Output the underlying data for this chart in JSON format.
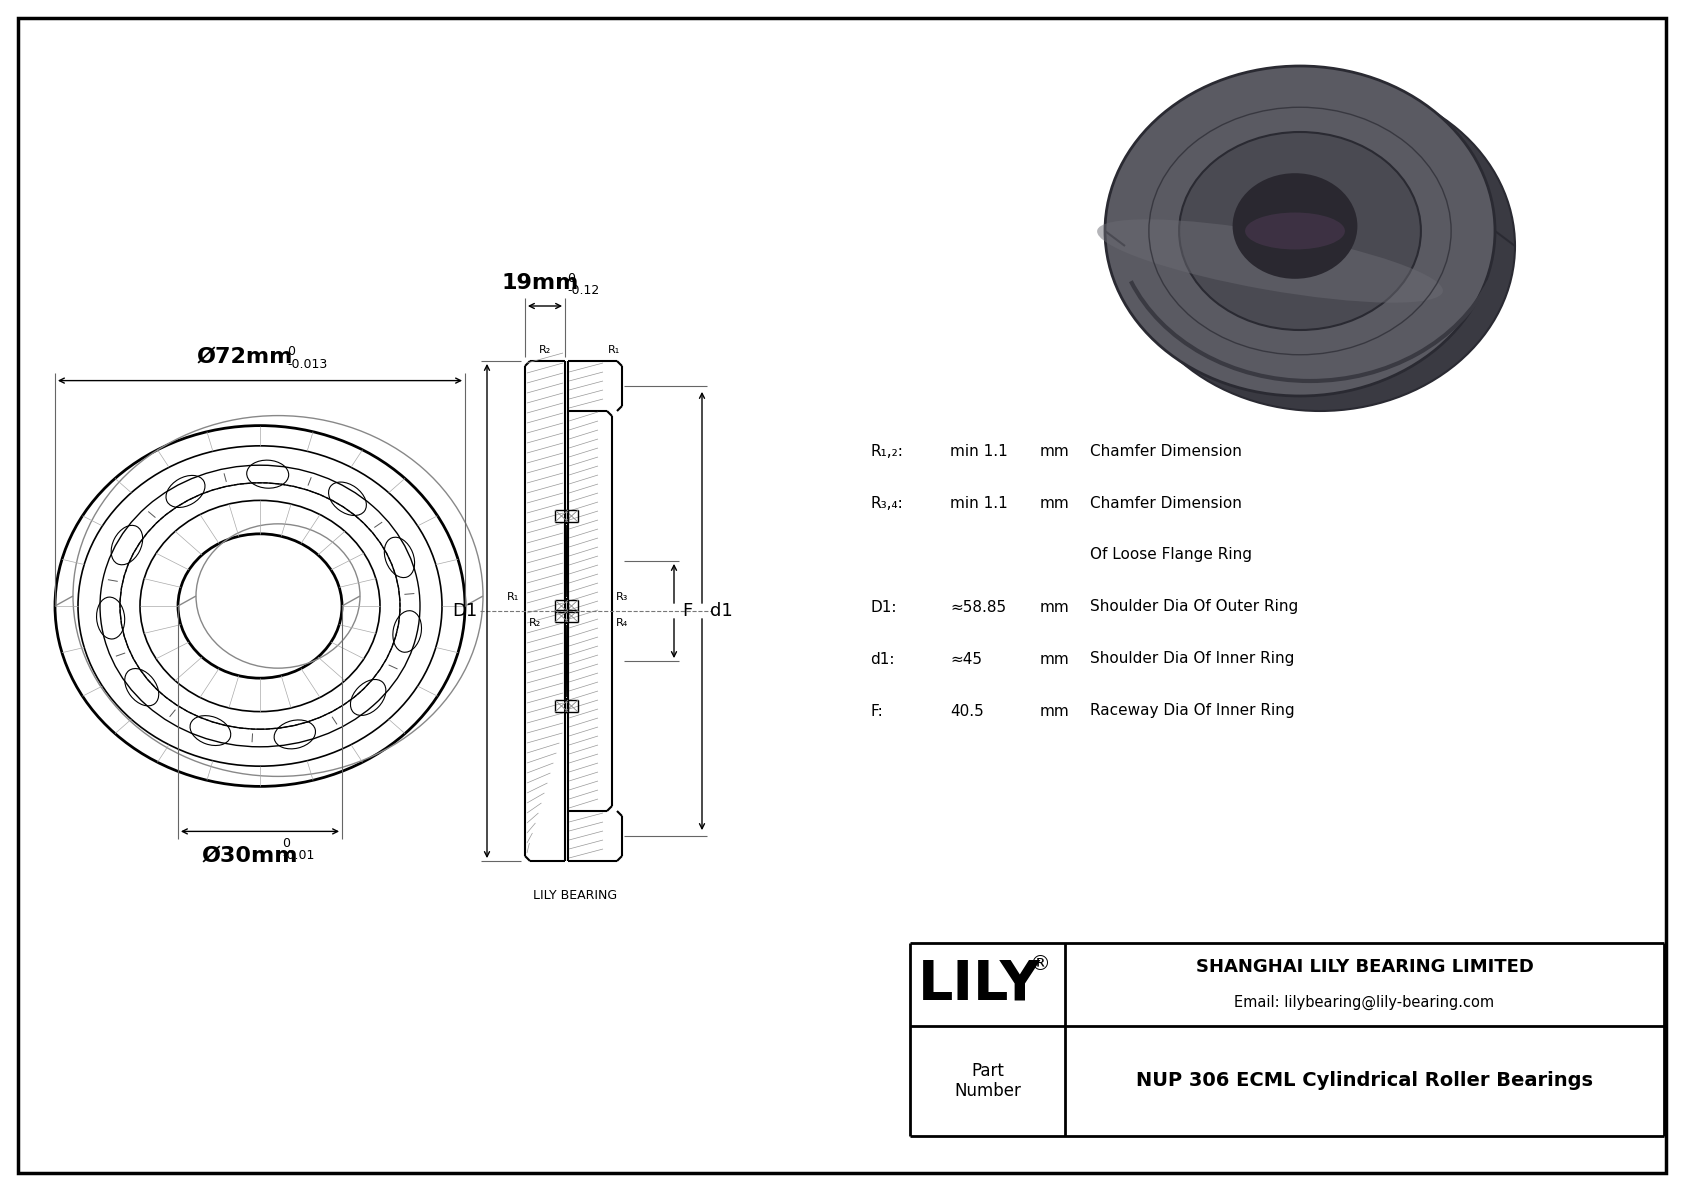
{
  "bg_color": "#ffffff",
  "lc": "#000000",
  "dim_outer_label": "Ø72mm",
  "dim_outer_sup": "0",
  "dim_outer_tol": "-0.013",
  "dim_inner_label": "Ø30mm",
  "dim_inner_sup": "0",
  "dim_inner_tol": "-0.01",
  "dim_width_label": "19mm",
  "dim_width_sup": "0",
  "dim_width_tol": "-0.12",
  "bearing_label": "LILY BEARING",
  "spec_rows": [
    {
      "label": "R₁,₂:",
      "value": "min 1.1",
      "unit": "mm",
      "desc": "Chamfer Dimension"
    },
    {
      "label": "R₃,₄:",
      "value": "min 1.1",
      "unit": "mm",
      "desc": "Chamfer Dimension"
    },
    {
      "label": "",
      "value": "",
      "unit": "",
      "desc": "Of Loose Flange Ring"
    },
    {
      "label": "D1:",
      "value": "≈58.85",
      "unit": "mm",
      "desc": "Shoulder Dia Of Outer Ring"
    },
    {
      "label": "d1:",
      "value": "≈45",
      "unit": "mm",
      "desc": "Shoulder Dia Of Inner Ring"
    },
    {
      "label": "F:",
      "value": "40.5",
      "unit": "mm",
      "desc": "Raceway Dia Of Inner Ring"
    }
  ],
  "lily_text": "LILY",
  "company_line1": "SHANGHAI LILY BEARING LIMITED",
  "company_line2": "Email: lilybearing@lily-bearing.com",
  "part_label": "Part\nNumber",
  "part_number": "NUP 306 ECML Cylindrical Roller Bearings",
  "photo_colors": {
    "outer_body": "#5a5a62",
    "outer_body_dark": "#3a3a42",
    "inner_face": "#4a4a52",
    "bore_dark": "#2a2830",
    "bore_purple": "#4a3850",
    "highlight": "#6a6a72",
    "edge": "#2a2a32",
    "side_dark": "#3a3a40"
  }
}
